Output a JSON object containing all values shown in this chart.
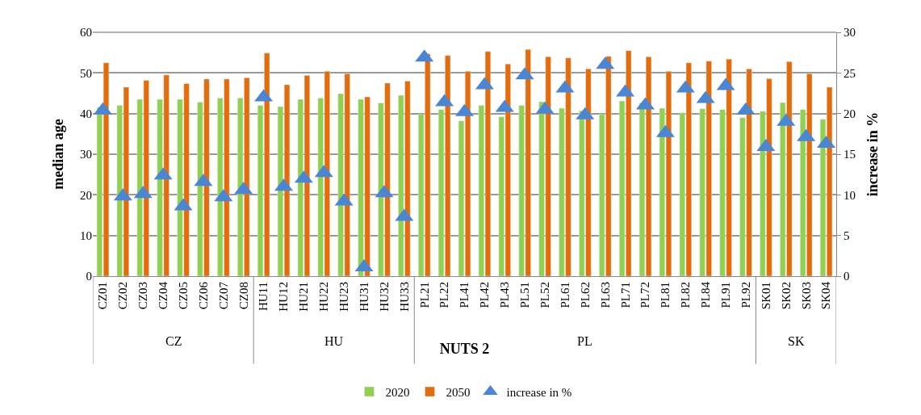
{
  "chart_data": {
    "type": "bar",
    "xlabel": "NUTS 2",
    "ylabel": "median age",
    "y2label": "increase in %",
    "categories": [
      "CZ01",
      "CZ02",
      "CZ03",
      "CZ04",
      "CZ05",
      "CZ06",
      "CZ07",
      "CZ08",
      "HU11",
      "HU12",
      "HU21",
      "HU22",
      "HU23",
      "HU31",
      "HU32",
      "HU33",
      "PL21",
      "PL22",
      "PL41",
      "PL42",
      "PL43",
      "PL51",
      "PL52",
      "PL61",
      "PL62",
      "PL63",
      "PL71",
      "PL72",
      "PL81",
      "PL82",
      "PL84",
      "PL91",
      "PL92",
      "SK01",
      "SK02",
      "SK03",
      "SK04"
    ],
    "series": [
      {
        "name": "2020",
        "color": "#92d050",
        "values": [
          41.5,
          42.0,
          43.5,
          43.5,
          43.5,
          42.8,
          43.8,
          43.8,
          42.0,
          41.7,
          43.5,
          43.8,
          44.9,
          43.5,
          42.6,
          44.5,
          39.8,
          41.0,
          38.2,
          42.0,
          39.2,
          42.0,
          42.9,
          41.3,
          40.7,
          39.8,
          43.1,
          42.6,
          41.3,
          40.2,
          41.2,
          41.0,
          39.0,
          40.6,
          42.7,
          41.0,
          38.6
        ]
      },
      {
        "name": "2050",
        "color": "#e46c0a",
        "values": [
          52.5,
          46.5,
          48.2,
          49.5,
          47.4,
          48.5,
          48.5,
          48.8,
          54.9,
          47.1,
          49.4,
          50.4,
          49.8,
          44.1,
          47.5,
          48.0,
          54.7,
          54.3,
          50.4,
          55.3,
          52.2,
          55.8,
          54.0,
          53.7,
          51.0,
          54.1,
          55.5,
          54.0,
          50.4,
          52.5,
          52.9,
          53.4,
          51.0,
          48.6,
          52.8,
          49.8,
          46.5
        ]
      },
      {
        "name": "increase in %",
        "type": "scatter",
        "axis": "y2",
        "marker": "triangle",
        "color": "#4a86d4",
        "values": [
          20.4,
          9.8,
          10.1,
          12.4,
          8.6,
          11.6,
          9.7,
          10.6,
          22.0,
          11.0,
          12.0,
          12.7,
          9.2,
          1.1,
          10.2,
          7.3,
          26.9,
          21.4,
          20.2,
          23.5,
          20.7,
          24.7,
          20.5,
          23.1,
          19.8,
          26.0,
          22.6,
          21.0,
          17.6,
          23.1,
          21.8,
          23.4,
          20.4,
          15.9,
          19.0,
          17.1,
          16.3
        ]
      }
    ],
    "ylim": [
      0,
      60
    ],
    "yticks": [
      0,
      10,
      20,
      30,
      40,
      50,
      60
    ],
    "y2lim": [
      0,
      30
    ],
    "y2ticks": [
      0,
      5,
      10,
      15,
      20,
      25,
      30
    ],
    "grid": "y",
    "legend": "bottom",
    "annotations": [
      "CZ",
      "HU",
      "PL",
      "SK"
    ]
  }
}
